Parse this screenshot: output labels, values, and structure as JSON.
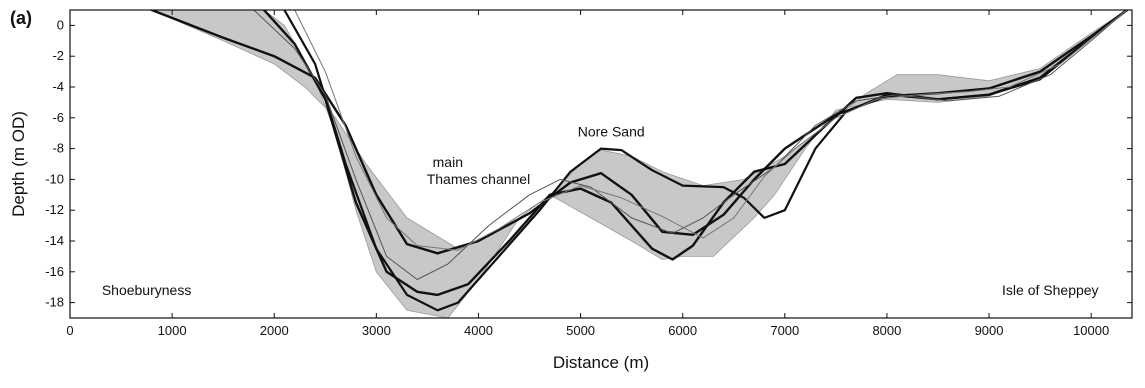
{
  "chart_data": {
    "type": "line",
    "panel_label": "(a)",
    "xlabel": "Distance (m)",
    "ylabel": "Depth (m OD)",
    "xlim": [
      0,
      10400
    ],
    "ylim": [
      -19,
      1
    ],
    "xticks": [
      0,
      1000,
      2000,
      3000,
      4000,
      5000,
      6000,
      7000,
      8000,
      9000,
      10000
    ],
    "yticks": [
      0,
      -2,
      -4,
      -6,
      -8,
      -10,
      -12,
      -14,
      -16,
      -18
    ],
    "grid": false,
    "annotations": [
      {
        "text": "main",
        "x": 3700,
        "y": -9.2
      },
      {
        "text": "Thames channel",
        "x": 4000,
        "y": -10.3
      },
      {
        "text": "Nore Sand",
        "x": 5300,
        "y": -7.2
      },
      {
        "text": "Shoeburyness",
        "x": 750,
        "y": -17.5
      },
      {
        "text": "Isle of Sheppey",
        "x": 9600,
        "y": -17.5
      }
    ],
    "envelope": {
      "upper": [
        [
          800,
          1
        ],
        [
          1500,
          -1
        ],
        [
          2000,
          -2.5
        ],
        [
          2300,
          -4
        ],
        [
          2600,
          -6
        ],
        [
          2900,
          -9
        ],
        [
          3300,
          -12.5
        ],
        [
          3800,
          -14.5
        ],
        [
          4300,
          -13
        ],
        [
          4700,
          -11
        ],
        [
          5000,
          -9
        ],
        [
          5200,
          -8.1
        ],
        [
          5500,
          -8.5
        ],
        [
          5800,
          -9.5
        ],
        [
          6200,
          -10.4
        ],
        [
          6600,
          -10
        ],
        [
          7000,
          -8.5
        ],
        [
          7400,
          -6.5
        ],
        [
          7800,
          -4.4
        ],
        [
          8100,
          -3.2
        ],
        [
          8500,
          -3.2
        ],
        [
          9000,
          -3.6
        ],
        [
          9500,
          -2.8
        ],
        [
          10000,
          -0.5
        ],
        [
          10350,
          1
        ]
      ],
      "lower": [
        [
          10350,
          1
        ],
        [
          10000,
          -0.8
        ],
        [
          9500,
          -3.3
        ],
        [
          9000,
          -4.6
        ],
        [
          8500,
          -5
        ],
        [
          8000,
          -4.8
        ],
        [
          7500,
          -5.5
        ],
        [
          7200,
          -8
        ],
        [
          6900,
          -11
        ],
        [
          6700,
          -12.5
        ],
        [
          6300,
          -15
        ],
        [
          6000,
          -15
        ],
        [
          5800,
          -15.2
        ],
        [
          5500,
          -14
        ],
        [
          5100,
          -12.5
        ],
        [
          4700,
          -11
        ],
        [
          4400,
          -12.5
        ],
        [
          4000,
          -16.5
        ],
        [
          3700,
          -19
        ],
        [
          3300,
          -18.5
        ],
        [
          3000,
          -16
        ],
        [
          2800,
          -12
        ],
        [
          2600,
          -7
        ],
        [
          2400,
          -3.5
        ],
        [
          2100,
          0
        ],
        [
          1900,
          1
        ]
      ]
    },
    "series": [
      {
        "values": [
          [
            800,
            1
          ],
          [
            1500,
            -0.8
          ],
          [
            2000,
            -2
          ],
          [
            2400,
            -3.4
          ],
          [
            2700,
            -6.5
          ],
          [
            3000,
            -11
          ],
          [
            3300,
            -14.2
          ],
          [
            3600,
            -14.8
          ],
          [
            4000,
            -14
          ],
          [
            4500,
            -12.2
          ],
          [
            4900,
            -10.2
          ],
          [
            5200,
            -9.6
          ],
          [
            5500,
            -11
          ],
          [
            5800,
            -13.4
          ],
          [
            6100,
            -13.6
          ],
          [
            6400,
            -12.3
          ],
          [
            6700,
            -10
          ],
          [
            7000,
            -8
          ],
          [
            7500,
            -5.8
          ],
          [
            8000,
            -4.6
          ],
          [
            8500,
            -4.4
          ],
          [
            9000,
            -4.1
          ],
          [
            9500,
            -3
          ],
          [
            10000,
            -0.7
          ],
          [
            10350,
            1
          ]
        ]
      },
      {
        "values": [
          [
            1900,
            1
          ],
          [
            2200,
            -1.2
          ],
          [
            2500,
            -4.8
          ],
          [
            2800,
            -11.5
          ],
          [
            3100,
            -16
          ],
          [
            3400,
            -17.3
          ],
          [
            3600,
            -17.5
          ],
          [
            3900,
            -16.8
          ],
          [
            4300,
            -14
          ],
          [
            4700,
            -11
          ],
          [
            5000,
            -10.6
          ],
          [
            5300,
            -11.5
          ],
          [
            5700,
            -14.5
          ],
          [
            5900,
            -15.2
          ],
          [
            6100,
            -14.3
          ],
          [
            6400,
            -11.5
          ],
          [
            6700,
            -9.5
          ],
          [
            7000,
            -9
          ],
          [
            7400,
            -6.5
          ],
          [
            7700,
            -4.7
          ],
          [
            8000,
            -4.4
          ],
          [
            8500,
            -4.8
          ],
          [
            9000,
            -4.5
          ],
          [
            9500,
            -3.4
          ],
          [
            10000,
            -0.8
          ],
          [
            10350,
            1
          ]
        ]
      },
      {
        "values": [
          [
            2100,
            1
          ],
          [
            2400,
            -2.5
          ],
          [
            2700,
            -9
          ],
          [
            3000,
            -14.5
          ],
          [
            3300,
            -17.5
          ],
          [
            3600,
            -18.5
          ],
          [
            3800,
            -18
          ],
          [
            4200,
            -15
          ],
          [
            4600,
            -12
          ],
          [
            4900,
            -9.5
          ],
          [
            5200,
            -8
          ],
          [
            5400,
            -8.1
          ],
          [
            5700,
            -9.4
          ],
          [
            6000,
            -10.4
          ],
          [
            6400,
            -10.5
          ],
          [
            6600,
            -11.2
          ],
          [
            6800,
            -12.5
          ],
          [
            7000,
            -12
          ],
          [
            7300,
            -8
          ],
          [
            7600,
            -5.6
          ],
          [
            8000,
            -4.5
          ],
          [
            8500,
            -4.8
          ],
          [
            9000,
            -4.5
          ],
          [
            9500,
            -3.5
          ],
          [
            10000,
            -0.8
          ],
          [
            10350,
            1
          ]
        ]
      },
      {
        "values": [
          [
            1800,
            1
          ],
          [
            2200,
            -1.5
          ],
          [
            2500,
            -4.5
          ],
          [
            2800,
            -10
          ],
          [
            3100,
            -15
          ],
          [
            3400,
            -16.5
          ],
          [
            3700,
            -15.5
          ],
          [
            4100,
            -13
          ],
          [
            4500,
            -11
          ],
          [
            4800,
            -10
          ],
          [
            5100,
            -10.5
          ],
          [
            5500,
            -12.5
          ],
          [
            5900,
            -13.5
          ],
          [
            6200,
            -12.5
          ],
          [
            6500,
            -11
          ],
          [
            6900,
            -9.2
          ],
          [
            7300,
            -6.5
          ],
          [
            7700,
            -4.9
          ],
          [
            8100,
            -4.5
          ],
          [
            8600,
            -4.9
          ],
          [
            9100,
            -4.6
          ],
          [
            9600,
            -3.2
          ],
          [
            10000,
            -1
          ],
          [
            10350,
            1
          ]
        ]
      },
      {
        "values": [
          [
            2200,
            1
          ],
          [
            2500,
            -3
          ],
          [
            2800,
            -8.5
          ],
          [
            3100,
            -12.5
          ],
          [
            3400,
            -14.3
          ],
          [
            3800,
            -14.6
          ],
          [
            4200,
            -13.2
          ],
          [
            4600,
            -11.5
          ],
          [
            5000,
            -10.4
          ],
          [
            5400,
            -11.2
          ],
          [
            5800,
            -12.4
          ],
          [
            6200,
            -13.8
          ],
          [
            6500,
            -12.5
          ],
          [
            6800,
            -9.8
          ],
          [
            7100,
            -8
          ],
          [
            7500,
            -6
          ],
          [
            7900,
            -4.8
          ],
          [
            8300,
            -4.5
          ],
          [
            8800,
            -4.3
          ],
          [
            9200,
            -4
          ],
          [
            9700,
            -2.5
          ],
          [
            10350,
            1
          ]
        ]
      }
    ]
  }
}
